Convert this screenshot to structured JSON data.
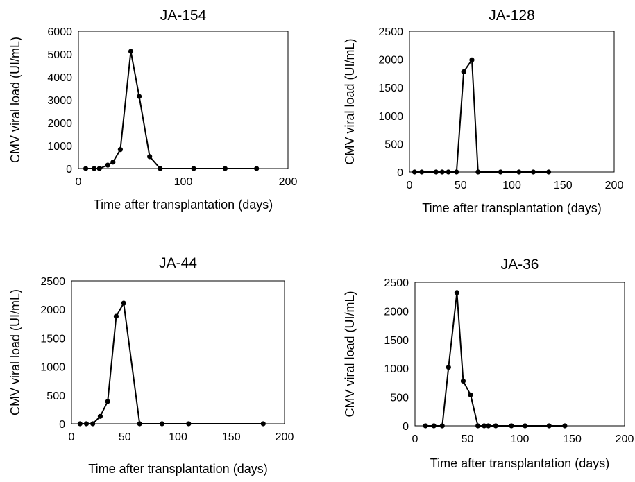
{
  "chart_data": [
    {
      "type": "line",
      "title": "JA-154",
      "xlabel": "Time after transplantation (days)",
      "ylabel": "CMV viral load (UI/mL)",
      "xlim": [
        0,
        200
      ],
      "ylim": [
        0,
        6000
      ],
      "xticks": [
        "0",
        "100",
        "200"
      ],
      "yticks": [
        "0",
        "1000",
        "2000",
        "3000",
        "4000",
        "5000",
        "6000"
      ],
      "grid": false,
      "x": [
        7,
        15,
        20,
        28,
        33,
        40,
        50,
        58,
        68,
        78,
        110,
        140,
        170
      ],
      "y": [
        0,
        0,
        0,
        150,
        280,
        830,
        5120,
        3150,
        520,
        0,
        0,
        0,
        0
      ]
    },
    {
      "type": "line",
      "title": "JA-128",
      "xlabel": "Time after transplantation (days)",
      "ylabel": "CMV viral load (UI/mL)",
      "xlim": [
        0,
        200
      ],
      "ylim": [
        0,
        2500
      ],
      "xticks": [
        "0",
        "50",
        "100",
        "150",
        "200"
      ],
      "yticks": [
        "0",
        "500",
        "1000",
        "1500",
        "2000",
        "2500"
      ],
      "grid": false,
      "x": [
        5,
        12,
        26,
        32,
        38,
        46,
        53,
        61,
        67,
        89,
        107,
        121,
        136
      ],
      "y": [
        0,
        0,
        0,
        0,
        0,
        0,
        1780,
        1990,
        0,
        0,
        0,
        0,
        0
      ]
    },
    {
      "type": "line",
      "title": "JA-44",
      "xlabel": "Time after transplantation (days)",
      "ylabel": "CMV viral load (UI/mL)",
      "xlim": [
        0,
        200
      ],
      "ylim": [
        0,
        2500
      ],
      "xticks": [
        "0",
        "50",
        "100",
        "150",
        "200"
      ],
      "yticks": [
        "0",
        "500",
        "1000",
        "1500",
        "2000",
        "2500"
      ],
      "grid": false,
      "x": [
        8,
        14,
        20,
        27,
        34,
        42,
        49,
        64,
        85,
        110,
        180
      ],
      "y": [
        0,
        0,
        0,
        130,
        390,
        1880,
        2110,
        0,
        0,
        0,
        0
      ]
    },
    {
      "type": "line",
      "title": "JA-36",
      "xlabel": "Time after transplantation (days)",
      "ylabel": "CMV viral load (UI/mL)",
      "xlim": [
        0,
        200
      ],
      "ylim": [
        0,
        2500
      ],
      "xticks": [
        "0",
        "50",
        "100",
        "150",
        "200"
      ],
      "yticks": [
        "0",
        "500",
        "1000",
        "1500",
        "2000",
        "2500"
      ],
      "grid": false,
      "x": [
        10,
        18,
        26,
        32,
        40,
        46,
        53,
        60,
        66,
        70,
        77,
        92,
        105,
        128,
        143
      ],
      "y": [
        0,
        0,
        0,
        1020,
        2320,
        780,
        540,
        0,
        0,
        0,
        0,
        0,
        0,
        0,
        0
      ]
    }
  ]
}
